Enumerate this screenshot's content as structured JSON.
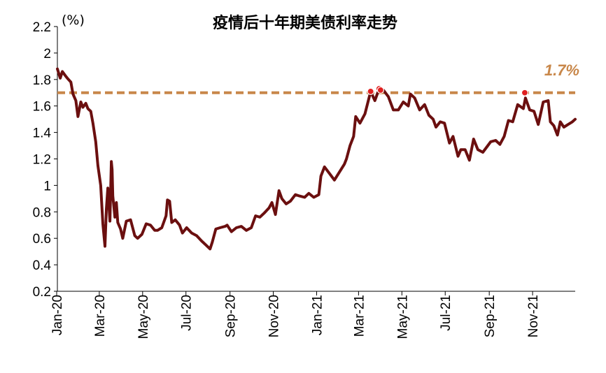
{
  "chart_data": {
    "type": "line",
    "title": "疫情后十年期美债利率走势",
    "unit": "(%)",
    "ylim": [
      0.2,
      2.2
    ],
    "yticks": [
      0.2,
      0.4,
      0.6,
      0.8,
      1,
      1.2,
      1.4,
      1.6,
      1.8,
      2,
      2.2
    ],
    "ytick_labels": [
      "0.2",
      "0.4",
      "0.6",
      "0.8",
      "1",
      "1.2",
      "1.4",
      "1.6",
      "1.8",
      "2",
      "2.2"
    ],
    "x_range": [
      "2020-01-02",
      "2021-12-31"
    ],
    "xticks": [
      "2020-01-01",
      "2020-03-01",
      "2020-05-01",
      "2020-07-01",
      "2020-09-01",
      "2020-11-01",
      "2021-01-01",
      "2021-03-01",
      "2021-05-01",
      "2021-07-01",
      "2021-09-01",
      "2021-11-01"
    ],
    "xtick_labels": [
      "Jan-20",
      "Mar-20",
      "May-20",
      "Jul-20",
      "Sep-20",
      "Nov-20",
      "Jan-21",
      "Mar-21",
      "May-21",
      "Jul-21",
      "Sep-21",
      "Nov-21"
    ],
    "grid": false,
    "line_color": "#6B0F0F",
    "series": [
      {
        "x": [
          "2020-01-02",
          "2020-01-06",
          "2020-01-09",
          "2020-01-13",
          "2020-01-16",
          "2020-01-21",
          "2020-01-24",
          "2020-01-28",
          "2020-01-31",
          "2020-02-04",
          "2020-02-07",
          "2020-02-11",
          "2020-02-14",
          "2020-02-18",
          "2020-02-21",
          "2020-02-25",
          "2020-02-28",
          "2020-03-03",
          "2020-03-06",
          "2020-03-09",
          "2020-03-11",
          "2020-03-13",
          "2020-03-16",
          "2020-03-18",
          "2020-03-19",
          "2020-03-20",
          "2020-03-23",
          "2020-03-25",
          "2020-03-27",
          "2020-03-31",
          "2020-04-03",
          "2020-04-08",
          "2020-04-14",
          "2020-04-20",
          "2020-04-24",
          "2020-04-30",
          "2020-05-06",
          "2020-05-12",
          "2020-05-18",
          "2020-05-22",
          "2020-05-28",
          "2020-06-03",
          "2020-06-05",
          "2020-06-08",
          "2020-06-11",
          "2020-06-16",
          "2020-06-22",
          "2020-06-26",
          "2020-07-02",
          "2020-07-09",
          "2020-07-16",
          "2020-07-23",
          "2020-07-29",
          "2020-08-04",
          "2020-08-07",
          "2020-08-12",
          "2020-08-18",
          "2020-08-25",
          "2020-08-28",
          "2020-09-03",
          "2020-09-10",
          "2020-09-17",
          "2020-09-24",
          "2020-10-01",
          "2020-10-07",
          "2020-10-13",
          "2020-10-19",
          "2020-10-26",
          "2020-10-30",
          "2020-11-04",
          "2020-11-09",
          "2020-11-13",
          "2020-11-19",
          "2020-11-25",
          "2020-12-02",
          "2020-12-08",
          "2020-12-15",
          "2020-12-21",
          "2020-12-28",
          "2021-01-04",
          "2021-01-07",
          "2021-01-12",
          "2021-01-19",
          "2021-01-26",
          "2021-02-02",
          "2021-02-09",
          "2021-02-12",
          "2021-02-17",
          "2021-02-22",
          "2021-02-25",
          "2021-03-03",
          "2021-03-10",
          "2021-03-18",
          "2021-03-24",
          "2021-03-30",
          "2021-04-05",
          "2021-04-12",
          "2021-04-19",
          "2021-04-26",
          "2021-05-03",
          "2021-05-10",
          "2021-05-13",
          "2021-05-19",
          "2021-05-26",
          "2021-06-02",
          "2021-06-08",
          "2021-06-14",
          "2021-06-18",
          "2021-06-24",
          "2021-06-30",
          "2021-07-07",
          "2021-07-12",
          "2021-07-19",
          "2021-07-23",
          "2021-07-29",
          "2021-08-04",
          "2021-08-10",
          "2021-08-16",
          "2021-08-23",
          "2021-08-30",
          "2021-09-03",
          "2021-09-10",
          "2021-09-16",
          "2021-09-22",
          "2021-09-28",
          "2021-10-04",
          "2021-10-11",
          "2021-10-19",
          "2021-10-22",
          "2021-10-28",
          "2021-11-03",
          "2021-11-09",
          "2021-11-16",
          "2021-11-23",
          "2021-11-26",
          "2021-12-01",
          "2021-12-06",
          "2021-12-10",
          "2021-12-15",
          "2021-12-21",
          "2021-12-27",
          "2021-12-31"
        ],
        "values": [
          1.88,
          1.81,
          1.86,
          1.83,
          1.81,
          1.78,
          1.69,
          1.64,
          1.52,
          1.63,
          1.59,
          1.62,
          1.58,
          1.56,
          1.47,
          1.33,
          1.15,
          1.0,
          0.71,
          0.54,
          0.82,
          0.98,
          0.73,
          1.18,
          1.12,
          0.92,
          0.76,
          0.87,
          0.72,
          0.67,
          0.6,
          0.73,
          0.74,
          0.62,
          0.6,
          0.63,
          0.71,
          0.7,
          0.66,
          0.66,
          0.68,
          0.77,
          0.89,
          0.88,
          0.72,
          0.74,
          0.7,
          0.64,
          0.68,
          0.64,
          0.62,
          0.58,
          0.55,
          0.52,
          0.57,
          0.67,
          0.68,
          0.69,
          0.7,
          0.65,
          0.68,
          0.69,
          0.66,
          0.68,
          0.77,
          0.76,
          0.79,
          0.83,
          0.87,
          0.78,
          0.96,
          0.9,
          0.86,
          0.88,
          0.93,
          0.92,
          0.91,
          0.94,
          0.91,
          0.93,
          1.07,
          1.14,
          1.09,
          1.04,
          1.1,
          1.16,
          1.2,
          1.3,
          1.37,
          1.52,
          1.47,
          1.54,
          1.71,
          1.64,
          1.73,
          1.72,
          1.67,
          1.57,
          1.57,
          1.63,
          1.6,
          1.69,
          1.66,
          1.57,
          1.61,
          1.53,
          1.5,
          1.44,
          1.48,
          1.47,
          1.32,
          1.37,
          1.22,
          1.27,
          1.27,
          1.19,
          1.35,
          1.27,
          1.25,
          1.3,
          1.33,
          1.34,
          1.31,
          1.37,
          1.49,
          1.48,
          1.61,
          1.58,
          1.66,
          1.57,
          1.56,
          1.46,
          1.63,
          1.64,
          1.48,
          1.45,
          1.38,
          1.48,
          1.44,
          1.46,
          1.48,
          1.5
        ]
      }
    ],
    "reference_line": {
      "value": 1.7,
      "label": "1.7%",
      "color": "#C8874A"
    },
    "highlight_points": {
      "color": "#E02020",
      "x": [
        "2021-03-18",
        "2021-03-30",
        "2021-04-01",
        "2021-10-21"
      ],
      "values": [
        1.71,
        1.73,
        1.72,
        1.7
      ]
    }
  }
}
